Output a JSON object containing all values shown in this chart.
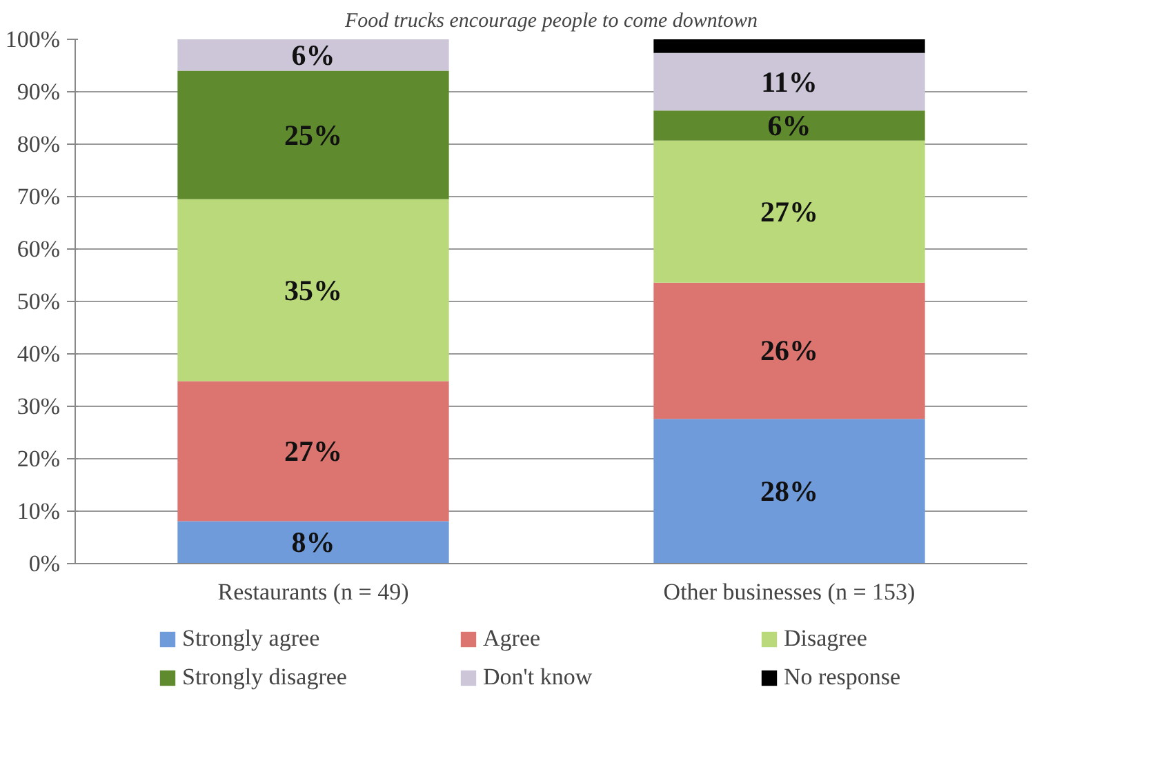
{
  "chart_data": {
    "type": "bar",
    "title": "Food trucks encourage people to come downtown",
    "stacked": true,
    "categories": [
      "Restaurants (n = 49)",
      "Other businesses (n = 153)"
    ],
    "series": [
      {
        "name": "Strongly agree",
        "color": "#6f9bdb",
        "values": [
          8.1,
          27.6
        ],
        "value_labels": [
          "8%",
          "28%"
        ]
      },
      {
        "name": "Agree",
        "color": "#dc7470",
        "values": [
          26.7,
          26.0
        ],
        "value_labels": [
          "27%",
          "26%"
        ]
      },
      {
        "name": "Disagree",
        "color": "#b9d97a",
        "values": [
          34.7,
          27.1
        ],
        "value_labels": [
          "35%",
          "27%"
        ]
      },
      {
        "name": "Strongly disagree",
        "color": "#5f8a2e",
        "values": [
          24.5,
          5.7
        ],
        "value_labels": [
          "25%",
          "6%"
        ]
      },
      {
        "name": "Don't know",
        "color": "#cdc6d8",
        "values": [
          6.0,
          11.0
        ],
        "value_labels": [
          "6%",
          "11%"
        ]
      },
      {
        "name": "No response",
        "color": "#000000",
        "values": [
          null,
          2.6
        ],
        "value_labels": [
          null,
          null
        ]
      }
    ],
    "ylim": [
      0,
      100
    ],
    "yticks": [
      {
        "value": 0,
        "label": "0%"
      },
      {
        "value": 10,
        "label": "10%"
      },
      {
        "value": 20,
        "label": "20%"
      },
      {
        "value": 30,
        "label": "30%"
      },
      {
        "value": 40,
        "label": "40%"
      },
      {
        "value": 50,
        "label": "50%"
      },
      {
        "value": 60,
        "label": "60%"
      },
      {
        "value": 70,
        "label": "70%"
      },
      {
        "value": 80,
        "label": "80%"
      },
      {
        "value": 90,
        "label": "90%"
      },
      {
        "value": 100,
        "label": "100%"
      }
    ],
    "grid": "y",
    "legend": "bottom"
  }
}
